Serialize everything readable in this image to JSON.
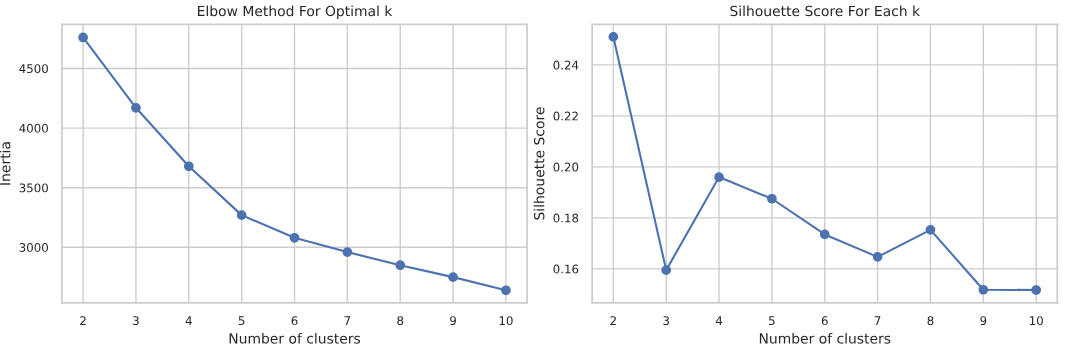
{
  "chart_data": [
    {
      "type": "line",
      "title": "Elbow Method For Optimal k",
      "xlabel": "Number of clusters",
      "ylabel": "Inertia",
      "x": [
        2,
        3,
        4,
        5,
        6,
        7,
        8,
        9,
        10
      ],
      "series": [
        {
          "color": "#4c72b0",
          "values": [
            4760,
            4170,
            3680,
            3270,
            3080,
            2960,
            2850,
            2750,
            2640
          ]
        }
      ],
      "xlim": [
        1.6,
        10.4
      ],
      "xticks": [
        2,
        3,
        4,
        5,
        6,
        7,
        8,
        9,
        10
      ],
      "ylim": [
        2535,
        4870
      ],
      "yticks": [
        3000,
        3500,
        4000,
        4500
      ],
      "grid": true,
      "marker": "circle",
      "line_style": "solid"
    },
    {
      "type": "line",
      "title": "Silhouette Score For Each k",
      "xlabel": "Number of clusters",
      "ylabel": "Silhouette Score",
      "x": [
        2,
        3,
        4,
        5,
        6,
        7,
        8,
        9,
        10
      ],
      "series": [
        {
          "color": "#4c72b0",
          "values": [
            0.251,
            0.1595,
            0.196,
            0.1875,
            0.1735,
            0.1647,
            0.1753,
            0.1518,
            0.1517
          ]
        }
      ],
      "xlim": [
        1.6,
        10.4
      ],
      "xticks": [
        2,
        3,
        4,
        5,
        6,
        7,
        8,
        9,
        10
      ],
      "ylim": [
        0.1467,
        0.2559
      ],
      "yticks": [
        {
          "value": 0.16,
          "label": "0.16"
        },
        {
          "value": 0.18,
          "label": "0.18"
        },
        {
          "value": 0.2,
          "label": "0.20"
        },
        {
          "value": 0.22,
          "label": "0.22"
        },
        {
          "value": 0.24,
          "label": "0.24"
        }
      ],
      "grid": true,
      "marker": "circle",
      "line_style": "solid"
    }
  ]
}
